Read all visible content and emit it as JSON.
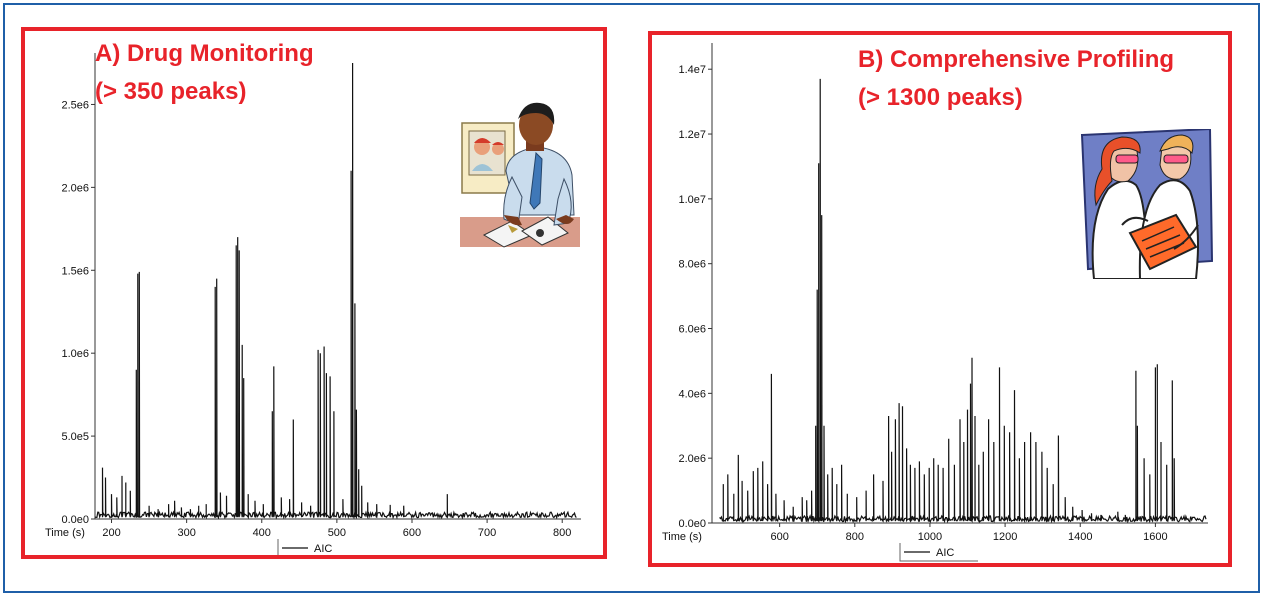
{
  "colors": {
    "accent_red": "#e8232a",
    "frame_blue": "#1f5fa8",
    "trace": "#111111"
  },
  "panel_a": {
    "heading_line1": "A) Drug Monitoring",
    "heading_line2": "(> 350 peaks)",
    "illustration": "man-reviewing-photos-icon"
  },
  "panel_b": {
    "heading_line1": "B) Comprehensive Profiling",
    "heading_line2": "(> 1300 peaks)",
    "illustration": "two-scientists-icon"
  },
  "chart_data": [
    {
      "type": "line",
      "xlabel": "Time (s)",
      "x_ticks": [
        200,
        300,
        400,
        500,
        600,
        700,
        800
      ],
      "x_tick_labels": [
        "200",
        "300",
        "400",
        "500",
        "600",
        "700",
        "800"
      ],
      "y_ticks": [
        0,
        500000,
        1000000,
        1500000,
        2000000,
        2500000
      ],
      "y_tick_labels": [
        "0.0e0",
        "5.0e5",
        "1.0e6",
        "1.5e6",
        "2.0e6",
        "2.5e6"
      ],
      "xlim": [
        178,
        825
      ],
      "ylim": [
        0,
        2750000
      ],
      "legend": "AIC",
      "legend_position": "bottom-center",
      "grid": false,
      "series": [
        {
          "name": "AIC",
          "peaks": [
            [
              188,
              310000
            ],
            [
              192,
              250000
            ],
            [
              200,
              150000
            ],
            [
              207,
              130000
            ],
            [
              214,
              260000
            ],
            [
              219,
              220000
            ],
            [
              225,
              170000
            ],
            [
              233,
              900000
            ],
            [
              235,
              1480000
            ],
            [
              237,
              1490000
            ],
            [
              250,
              80000
            ],
            [
              262,
              60000
            ],
            [
              276,
              90000
            ],
            [
              284,
              110000
            ],
            [
              293,
              70000
            ],
            [
              305,
              60000
            ],
            [
              316,
              80000
            ],
            [
              326,
              90000
            ],
            [
              338,
              1400000
            ],
            [
              340,
              1450000
            ],
            [
              345,
              160000
            ],
            [
              353,
              140000
            ],
            [
              366,
              1650000
            ],
            [
              368,
              1700000
            ],
            [
              370,
              1620000
            ],
            [
              374,
              1050000
            ],
            [
              376,
              850000
            ],
            [
              382,
              150000
            ],
            [
              391,
              110000
            ],
            [
              402,
              90000
            ],
            [
              414,
              650000
            ],
            [
              416,
              920000
            ],
            [
              426,
              130000
            ],
            [
              437,
              120000
            ],
            [
              442,
              600000
            ],
            [
              453,
              100000
            ],
            [
              465,
              80000
            ],
            [
              475,
              1020000
            ],
            [
              478,
              1000000
            ],
            [
              483,
              1040000
            ],
            [
              486,
              880000
            ],
            [
              491,
              860000
            ],
            [
              496,
              650000
            ],
            [
              508,
              120000
            ],
            [
              519,
              2100000
            ],
            [
              521,
              2750000
            ],
            [
              524,
              1300000
            ],
            [
              526,
              660000
            ],
            [
              529,
              300000
            ],
            [
              533,
              200000
            ],
            [
              541,
              100000
            ],
            [
              553,
              90000
            ],
            [
              571,
              85000
            ],
            [
              589,
              80000
            ],
            [
              647,
              150000
            ]
          ]
        }
      ]
    },
    {
      "type": "line",
      "xlabel": "Time (s)",
      "x_ticks": [
        600,
        800,
        1000,
        1200,
        1400,
        1600
      ],
      "x_tick_labels": [
        "600",
        "800",
        "1000",
        "1200",
        "1400",
        "1600"
      ],
      "y_ticks": [
        0,
        2000000,
        4000000,
        6000000,
        8000000,
        10000000,
        12000000,
        14000000
      ],
      "y_tick_labels": [
        "0.0e0",
        "2.0e6",
        "4.0e6",
        "6.0e6",
        "8.0e6",
        "1.0e7",
        "1.2e7",
        "1.4e7"
      ],
      "xlim": [
        420,
        1740
      ],
      "ylim": [
        0,
        14500000
      ],
      "legend": "AIC",
      "legend_position": "bottom-center",
      "grid": false,
      "series": [
        {
          "name": "AIC",
          "peaks": [
            [
              450,
              1200000
            ],
            [
              462,
              1500000
            ],
            [
              478,
              900000
            ],
            [
              490,
              2100000
            ],
            [
              500,
              1300000
            ],
            [
              515,
              1000000
            ],
            [
              530,
              1600000
            ],
            [
              542,
              1700000
            ],
            [
              555,
              1900000
            ],
            [
              568,
              1200000
            ],
            [
              578,
              4600000
            ],
            [
              590,
              900000
            ],
            [
              612,
              700000
            ],
            [
              636,
              500000
            ],
            [
              660,
              800000
            ],
            [
              672,
              700000
            ],
            [
              685,
              1000000
            ],
            [
              696,
              3000000
            ],
            [
              700,
              7200000
            ],
            [
              704,
              11100000
            ],
            [
              708,
              13700000
            ],
            [
              712,
              9500000
            ],
            [
              718,
              3000000
            ],
            [
              728,
              1500000
            ],
            [
              740,
              1700000
            ],
            [
              752,
              1200000
            ],
            [
              765,
              1800000
            ],
            [
              780,
              900000
            ],
            [
              805,
              800000
            ],
            [
              830,
              1000000
            ],
            [
              850,
              1500000
            ],
            [
              875,
              1300000
            ],
            [
              890,
              3300000
            ],
            [
              898,
              2200000
            ],
            [
              908,
              3200000
            ],
            [
              918,
              3700000
            ],
            [
              927,
              3600000
            ],
            [
              938,
              2300000
            ],
            [
              948,
              1800000
            ],
            [
              960,
              1700000
            ],
            [
              972,
              1900000
            ],
            [
              985,
              1500000
            ],
            [
              998,
              1700000
            ],
            [
              1010,
              2000000
            ],
            [
              1022,
              1800000
            ],
            [
              1035,
              1700000
            ],
            [
              1050,
              2600000
            ],
            [
              1065,
              1800000
            ],
            [
              1080,
              3200000
            ],
            [
              1090,
              2500000
            ],
            [
              1100,
              3500000
            ],
            [
              1108,
              4300000
            ],
            [
              1112,
              5100000
            ],
            [
              1120,
              3300000
            ],
            [
              1130,
              1800000
            ],
            [
              1142,
              2200000
            ],
            [
              1156,
              3200000
            ],
            [
              1170,
              2500000
            ],
            [
              1185,
              4800000
            ],
            [
              1198,
              3000000
            ],
            [
              1212,
              2800000
            ],
            [
              1225,
              4100000
            ],
            [
              1238,
              2000000
            ],
            [
              1252,
              2500000
            ],
            [
              1268,
              2800000
            ],
            [
              1282,
              2500000
            ],
            [
              1298,
              2200000
            ],
            [
              1312,
              1700000
            ],
            [
              1328,
              1200000
            ],
            [
              1342,
              2700000
            ],
            [
              1360,
              800000
            ],
            [
              1380,
              500000
            ],
            [
              1405,
              400000
            ],
            [
              1430,
              300000
            ],
            [
              1455,
              250000
            ],
            [
              1500,
              350000
            ],
            [
              1520,
              250000
            ],
            [
              1548,
              4700000
            ],
            [
              1552,
              3000000
            ],
            [
              1570,
              2000000
            ],
            [
              1585,
              1500000
            ],
            [
              1600,
              4800000
            ],
            [
              1605,
              4900000
            ],
            [
              1615,
              2500000
            ],
            [
              1630,
              1800000
            ],
            [
              1645,
              4400000
            ],
            [
              1650,
              2000000
            ]
          ]
        }
      ]
    }
  ]
}
